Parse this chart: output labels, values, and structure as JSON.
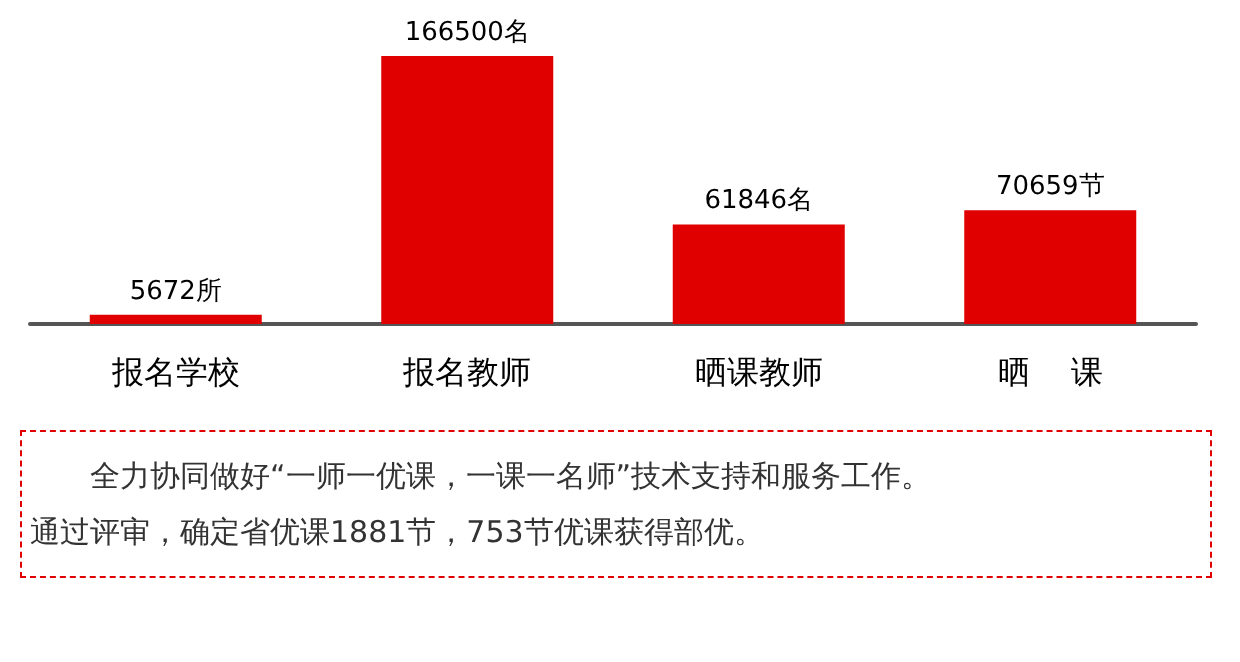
{
  "chart_data": {
    "type": "bar",
    "categories": [
      "报名学校",
      "报名教师",
      "晒课教师",
      "晒    课"
    ],
    "values": [
      5672,
      166500,
      61846,
      70659
    ],
    "value_labels": [
      "5672所",
      "166500名",
      "61846名",
      "70659节"
    ],
    "color": "#e00000",
    "annotations": [
      "全力协同做好“一师一优课，一课一名师”技术支持和服务工作。",
      "通过评审，确定省优课1881节，753节优课获得部优。"
    ]
  }
}
